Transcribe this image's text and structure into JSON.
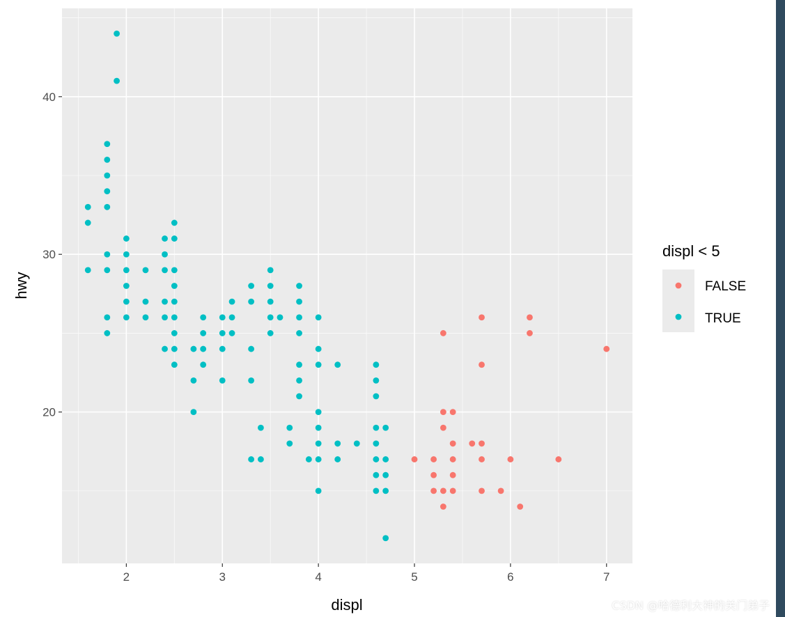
{
  "chart_data": {
    "type": "scatter",
    "xlabel": "displ",
    "ylabel": "hwy",
    "xlim": [
      1.33,
      7.27
    ],
    "ylim": [
      10.4,
      45.6
    ],
    "x_ticks": [
      "2",
      "3",
      "4",
      "5",
      "6",
      "7"
    ],
    "y_ticks": [
      "20",
      "30",
      "40"
    ],
    "grid": true,
    "legend": {
      "title": "displ < 5",
      "placement": "right",
      "entries": [
        "FALSE",
        "TRUE"
      ]
    },
    "colors": {
      "FALSE": "#F8766D",
      "TRUE": "#00BFC4"
    },
    "series": [
      {
        "name": "FALSE",
        "points": [
          [
            5.3,
            25
          ],
          [
            5.7,
            26
          ],
          [
            6.2,
            26
          ],
          [
            6.2,
            25
          ],
          [
            7.0,
            24
          ],
          [
            5.7,
            23
          ],
          [
            5.3,
            20
          ],
          [
            5.4,
            20
          ],
          [
            5.3,
            19
          ],
          [
            5.4,
            18
          ],
          [
            5.6,
            18
          ],
          [
            5.7,
            18
          ],
          [
            5.0,
            17
          ],
          [
            5.2,
            17
          ],
          [
            5.4,
            17
          ],
          [
            5.7,
            17
          ],
          [
            6.0,
            17
          ],
          [
            6.5,
            17
          ],
          [
            5.2,
            16
          ],
          [
            5.4,
            16
          ],
          [
            5.2,
            15
          ],
          [
            5.3,
            15
          ],
          [
            5.4,
            15
          ],
          [
            5.7,
            15
          ],
          [
            5.9,
            15
          ],
          [
            5.3,
            14
          ],
          [
            6.1,
            14
          ]
        ]
      },
      {
        "name": "TRUE",
        "points": [
          [
            1.9,
            44
          ],
          [
            1.9,
            41
          ],
          [
            1.8,
            37
          ],
          [
            1.8,
            36
          ],
          [
            1.8,
            35
          ],
          [
            1.8,
            34
          ],
          [
            1.6,
            33
          ],
          [
            1.8,
            33
          ],
          [
            1.6,
            32
          ],
          [
            2.5,
            32
          ],
          [
            2.0,
            31
          ],
          [
            2.4,
            31
          ],
          [
            2.5,
            31
          ],
          [
            1.8,
            30
          ],
          [
            2.0,
            30
          ],
          [
            2.4,
            30
          ],
          [
            1.6,
            29
          ],
          [
            1.8,
            29
          ],
          [
            2.0,
            29
          ],
          [
            2.2,
            29
          ],
          [
            2.4,
            29
          ],
          [
            2.5,
            29
          ],
          [
            3.5,
            29
          ],
          [
            2.0,
            28
          ],
          [
            2.5,
            28
          ],
          [
            3.3,
            28
          ],
          [
            3.5,
            28
          ],
          [
            3.8,
            28
          ],
          [
            2.0,
            27
          ],
          [
            2.2,
            27
          ],
          [
            2.4,
            27
          ],
          [
            2.5,
            27
          ],
          [
            3.1,
            27
          ],
          [
            3.3,
            27
          ],
          [
            3.5,
            27
          ],
          [
            3.8,
            27
          ],
          [
            1.8,
            26
          ],
          [
            2.0,
            26
          ],
          [
            2.2,
            26
          ],
          [
            2.4,
            26
          ],
          [
            2.5,
            26
          ],
          [
            2.8,
            26
          ],
          [
            3.0,
            26
          ],
          [
            3.1,
            26
          ],
          [
            3.5,
            26
          ],
          [
            3.6,
            26
          ],
          [
            3.8,
            26
          ],
          [
            4.0,
            26
          ],
          [
            1.8,
            25
          ],
          [
            2.5,
            25
          ],
          [
            2.8,
            25
          ],
          [
            3.0,
            25
          ],
          [
            3.1,
            25
          ],
          [
            3.5,
            25
          ],
          [
            3.8,
            25
          ],
          [
            2.4,
            24
          ],
          [
            2.5,
            24
          ],
          [
            2.7,
            24
          ],
          [
            2.8,
            24
          ],
          [
            3.0,
            24
          ],
          [
            3.3,
            24
          ],
          [
            4.0,
            24
          ],
          [
            2.5,
            23
          ],
          [
            2.8,
            23
          ],
          [
            3.8,
            23
          ],
          [
            4.0,
            23
          ],
          [
            4.2,
            23
          ],
          [
            4.6,
            23
          ],
          [
            2.7,
            22
          ],
          [
            3.0,
            22
          ],
          [
            3.3,
            22
          ],
          [
            3.8,
            22
          ],
          [
            4.6,
            22
          ],
          [
            3.8,
            21
          ],
          [
            4.6,
            21
          ],
          [
            2.7,
            20
          ],
          [
            4.0,
            20
          ],
          [
            3.4,
            19
          ],
          [
            3.7,
            19
          ],
          [
            4.0,
            19
          ],
          [
            4.6,
            19
          ],
          [
            4.7,
            19
          ],
          [
            3.7,
            18
          ],
          [
            4.0,
            18
          ],
          [
            4.2,
            18
          ],
          [
            4.4,
            18
          ],
          [
            4.6,
            18
          ],
          [
            3.3,
            17
          ],
          [
            3.4,
            17
          ],
          [
            3.9,
            17
          ],
          [
            4.0,
            17
          ],
          [
            4.2,
            17
          ],
          [
            4.6,
            17
          ],
          [
            4.7,
            17
          ],
          [
            4.6,
            16
          ],
          [
            4.7,
            16
          ],
          [
            4.0,
            15
          ],
          [
            4.6,
            15
          ],
          [
            4.7,
            15
          ],
          [
            4.7,
            12
          ]
        ]
      }
    ]
  },
  "watermark": "CSDN @哈德利大神的关门弟子"
}
